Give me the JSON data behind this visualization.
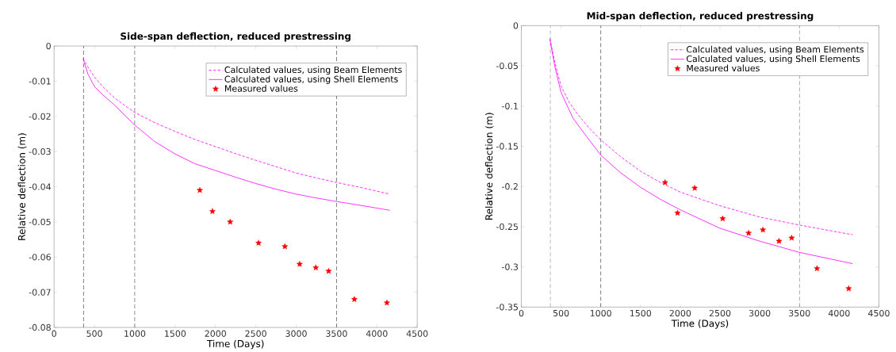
{
  "chart_data": [
    {
      "type": "line",
      "title": "Side-span deflection, reduced prestressing",
      "xlabel": "Time (Days)",
      "ylabel": "Relative deflection (m)",
      "xlim": [
        0,
        4500
      ],
      "ylim": [
        -0.08,
        0
      ],
      "xticks": [
        0,
        500,
        1000,
        1500,
        2000,
        2500,
        3000,
        3500,
        4000,
        4500
      ],
      "yticks": [
        -0.08,
        -0.07,
        -0.06,
        -0.05,
        -0.04,
        -0.03,
        -0.02,
        -0.01,
        0
      ],
      "legend": "top right",
      "grid": false,
      "ref_lines": [
        {
          "axis": "x",
          "value": 365,
          "color": "#555555",
          "line_style": "dashed"
        },
        {
          "axis": "x",
          "value": 1000,
          "color": "#555555",
          "line_style": "dashed"
        },
        {
          "axis": "x",
          "value": 3500,
          "color": "#555555",
          "line_style": "dashed"
        }
      ],
      "series": [
        {
          "name": "Calculated values, using Beam Elements",
          "color": "#ff00ff",
          "line_style": "dashed",
          "marker": "none",
          "x": [
            360,
            420,
            500,
            600,
            750,
            1000,
            1250,
            1500,
            1750,
            2000,
            2250,
            2500,
            2750,
            3000,
            3250,
            3500,
            3800,
            4140
          ],
          "values": [
            -0.0035,
            -0.006,
            -0.0088,
            -0.0115,
            -0.0148,
            -0.0189,
            -0.0218,
            -0.0243,
            -0.0266,
            -0.0286,
            -0.0306,
            -0.0325,
            -0.0343,
            -0.0361,
            -0.0375,
            -0.0388,
            -0.0402,
            -0.042
          ]
        },
        {
          "name": "Calculated values, using Shell Elements",
          "color": "#ff00ff",
          "line_style": "solid",
          "marker": "none",
          "x": [
            360,
            420,
            500,
            600,
            750,
            1000,
            1250,
            1500,
            1750,
            2000,
            2250,
            2500,
            2750,
            3000,
            3250,
            3500,
            3800,
            4160
          ],
          "values": [
            -0.0037,
            -0.008,
            -0.0115,
            -0.0138,
            -0.0168,
            -0.0225,
            -0.0272,
            -0.0307,
            -0.0335,
            -0.0354,
            -0.0373,
            -0.0391,
            -0.0407,
            -0.0421,
            -0.0432,
            -0.0442,
            -0.0453,
            -0.0467
          ]
        },
        {
          "name": "Measured values",
          "type": "scatter",
          "color": "#ff0000",
          "marker": "star",
          "x": [
            1806,
            1962,
            2182,
            2534,
            2860,
            3043,
            3243,
            3402,
            3721,
            4124
          ],
          "values": [
            -0.041,
            -0.047,
            -0.05,
            -0.056,
            -0.057,
            -0.062,
            -0.063,
            -0.064,
            -0.072,
            -0.073
          ]
        }
      ]
    },
    {
      "type": "line",
      "title": "Mid-span deflection, reduced prestressing",
      "xlabel": "Time (Days)",
      "ylabel": "Relative deflection (m)",
      "xlim": [
        0,
        4500
      ],
      "ylim": [
        -0.35,
        0
      ],
      "xticks": [
        0,
        500,
        1000,
        1500,
        2000,
        2500,
        3000,
        3500,
        4000,
        4500
      ],
      "yticks": [
        -0.35,
        -0.3,
        -0.25,
        -0.2,
        -0.15,
        -0.1,
        -0.05,
        0
      ],
      "legend": "top right",
      "grid": false,
      "ref_lines": [
        {
          "axis": "x",
          "value": 365,
          "color": "#555555",
          "line_style": "dashed"
        },
        {
          "axis": "x",
          "value": 1000,
          "color": "#555555",
          "line_style": "dashed"
        },
        {
          "axis": "x",
          "value": 3500,
          "color": "#555555",
          "line_style": "dashed"
        }
      ],
      "series": [
        {
          "name": "Calculated values, using Beam Elements",
          "color": "#ff00ff",
          "line_style": "dashed",
          "marker": "none",
          "x": [
            360,
            420,
            500,
            600,
            700,
            850,
            1000,
            1250,
            1500,
            1750,
            2000,
            2500,
            3000,
            3500,
            4170
          ],
          "values": [
            -0.016,
            -0.045,
            -0.075,
            -0.095,
            -0.109,
            -0.127,
            -0.142,
            -0.163,
            -0.181,
            -0.195,
            -0.207,
            -0.224,
            -0.238,
            -0.248,
            -0.26
          ]
        },
        {
          "name": "Calculated values, using Shell Elements",
          "color": "#ff00ff",
          "line_style": "solid",
          "marker": "none",
          "x": [
            360,
            420,
            500,
            650,
            800,
            1000,
            1250,
            1500,
            1750,
            2000,
            2500,
            3000,
            3500,
            4170
          ],
          "values": [
            -0.017,
            -0.05,
            -0.083,
            -0.115,
            -0.135,
            -0.161,
            -0.183,
            -0.201,
            -0.216,
            -0.229,
            -0.252,
            -0.268,
            -0.282,
            -0.296
          ]
        },
        {
          "name": "Measured values",
          "type": "scatter",
          "color": "#ff0000",
          "marker": "star",
          "x": [
            1809,
            1966,
            2182,
            2534,
            2860,
            3040,
            3243,
            3402,
            3721,
            4120
          ],
          "values": [
            -0.195,
            -0.233,
            -0.202,
            -0.24,
            -0.258,
            -0.254,
            -0.268,
            -0.264,
            -0.302,
            -0.327
          ]
        }
      ]
    }
  ]
}
